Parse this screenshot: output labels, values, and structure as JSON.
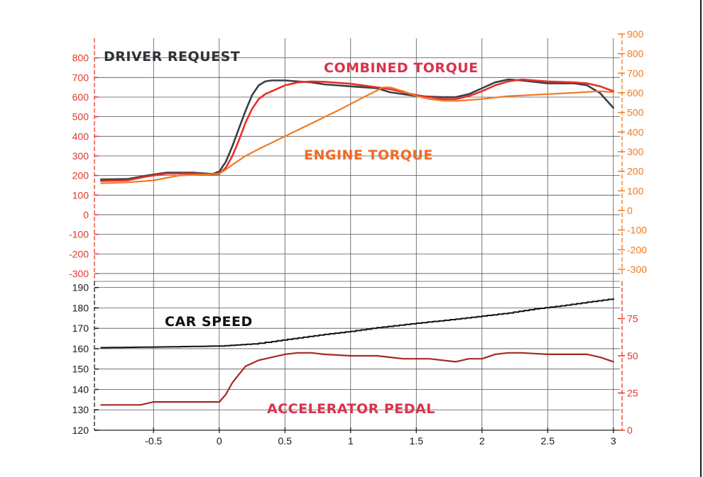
{
  "chart_data": {
    "type": "line",
    "x_ticks": [
      "-0.5",
      "0",
      "0.5",
      "1",
      "1.5",
      "2",
      "2.5",
      "3"
    ],
    "xlim": [
      -0.95,
      3.05
    ],
    "grid": true,
    "colors": {
      "driver_request": "#3a4046",
      "combined_torque": "#e8302a",
      "engine_torque": "#f07b22",
      "car_speed": "#111111",
      "accelerator_pedal": "#a52a20",
      "left_axis_top": "#e03a2c",
      "right_axis_top": "#ef7a22",
      "left_axis_bottom": "#1a1a1a",
      "right_axis_bottom": "#e03a2c"
    },
    "annotations": {
      "driver_request": "DRIVER REQUEST",
      "combined_torque": "COMBINED TORQUE",
      "engine_torque": "ENGINE TORQUE",
      "car_speed": "CAR SPEED",
      "accelerator_pedal": "ACCELERATOR PEDAL"
    },
    "top_panel": {
      "ylim": [
        -340,
        900
      ],
      "left_ticks": [
        "800",
        "700",
        "600",
        "500",
        "400",
        "300",
        "200",
        "100",
        "0",
        "-100",
        "-200",
        "-300"
      ],
      "left_tick_values": [
        800,
        700,
        600,
        500,
        400,
        300,
        200,
        100,
        0,
        -100,
        -200,
        -300
      ],
      "right_ticks": [
        "900",
        "800",
        "700",
        "600",
        "500",
        "400",
        "300",
        "200",
        "100",
        "0",
        "-100",
        "-200",
        "-300"
      ],
      "right_tick_values": [
        900,
        800,
        700,
        600,
        500,
        400,
        300,
        200,
        100,
        0,
        -100,
        -200,
        -300
      ],
      "series": [
        {
          "key": "driver_request",
          "x": [
            -0.9,
            -0.7,
            -0.55,
            -0.4,
            -0.2,
            -0.05,
            0.0,
            0.05,
            0.1,
            0.15,
            0.2,
            0.25,
            0.3,
            0.35,
            0.4,
            0.5,
            0.6,
            0.7,
            0.8,
            1.0,
            1.2,
            1.3,
            1.5,
            1.7,
            1.8,
            1.9,
            2.0,
            2.1,
            2.2,
            2.3,
            2.5,
            2.7,
            2.8,
            2.9,
            3.0
          ],
          "y": [
            180,
            182,
            200,
            215,
            215,
            208,
            220,
            270,
            350,
            440,
            530,
            610,
            660,
            680,
            685,
            685,
            680,
            675,
            665,
            655,
            645,
            625,
            605,
            600,
            600,
            615,
            645,
            675,
            690,
            685,
            670,
            670,
            660,
            620,
            545
          ]
        },
        {
          "key": "combined_torque",
          "x": [
            -0.9,
            -0.7,
            -0.55,
            -0.4,
            -0.2,
            -0.05,
            0.0,
            0.05,
            0.1,
            0.15,
            0.2,
            0.25,
            0.3,
            0.35,
            0.4,
            0.5,
            0.6,
            0.7,
            0.8,
            1.0,
            1.2,
            1.3,
            1.5,
            1.7,
            1.8,
            1.9,
            2.0,
            2.1,
            2.2,
            2.3,
            2.5,
            2.7,
            2.8,
            2.9,
            3.0
          ],
          "y": [
            172,
            175,
            195,
            210,
            210,
            205,
            208,
            240,
            300,
            380,
            470,
            540,
            590,
            615,
            630,
            660,
            675,
            680,
            678,
            668,
            650,
            640,
            610,
            590,
            590,
            605,
            630,
            660,
            680,
            690,
            680,
            675,
            670,
            655,
            630
          ]
        },
        {
          "key": "engine_torque",
          "x": [
            -0.9,
            -0.7,
            -0.5,
            -0.3,
            -0.1,
            0.0,
            0.05,
            0.1,
            0.2,
            0.3,
            0.5,
            0.7,
            0.9,
            1.1,
            1.25,
            1.3,
            1.4,
            1.5,
            1.6,
            1.7,
            1.8,
            2.0,
            2.2,
            2.5,
            2.7,
            2.9,
            3.0
          ],
          "y": [
            160,
            165,
            175,
            200,
            205,
            210,
            230,
            255,
            300,
            335,
            400,
            465,
            530,
            600,
            650,
            650,
            630,
            605,
            590,
            582,
            580,
            590,
            605,
            615,
            622,
            630,
            625
          ]
        }
      ]
    },
    "bottom_panel": {
      "ylim": [
        120,
        193
      ],
      "left_ticks": [
        "190",
        "180",
        "170",
        "160",
        "150",
        "140",
        "130",
        "120"
      ],
      "left_tick_values": [
        190,
        180,
        170,
        160,
        150,
        140,
        130,
        120
      ],
      "right_ticks": [
        "75",
        "50",
        "25",
        "0"
      ],
      "right_tick_values": [
        75,
        50,
        25,
        0
      ],
      "right_ylim": [
        0,
        100
      ],
      "series": [
        {
          "key": "car_speed",
          "axis": "left",
          "x": [
            -0.9,
            -0.5,
            0.0,
            0.25,
            0.4,
            0.6,
            0.8,
            1.0,
            1.2,
            1.5,
            1.8,
            2.0,
            2.2,
            2.4,
            2.6,
            2.8,
            3.0
          ],
          "y": [
            160.5,
            160.8,
            161.3,
            162.3,
            163.5,
            165.3,
            167.0,
            168.5,
            170.3,
            172.5,
            174.5,
            176.0,
            177.5,
            179.5,
            181.0,
            182.8,
            184.5
          ]
        },
        {
          "key": "accelerator_pedal",
          "axis": "right",
          "x": [
            -0.9,
            -0.6,
            -0.5,
            0.0,
            0.05,
            0.1,
            0.2,
            0.3,
            0.4,
            0.5,
            0.6,
            0.7,
            0.8,
            1.0,
            1.2,
            1.3,
            1.4,
            1.6,
            1.8,
            1.9,
            2.0,
            2.1,
            2.2,
            2.3,
            2.5,
            2.8,
            2.9,
            3.0
          ],
          "y": [
            17,
            17,
            19,
            19,
            24,
            32,
            43,
            47,
            49,
            51,
            52,
            52,
            51,
            50,
            50,
            49,
            48,
            48,
            46,
            48,
            48,
            51,
            52,
            52,
            51,
            51,
            49,
            46
          ]
        }
      ]
    }
  }
}
